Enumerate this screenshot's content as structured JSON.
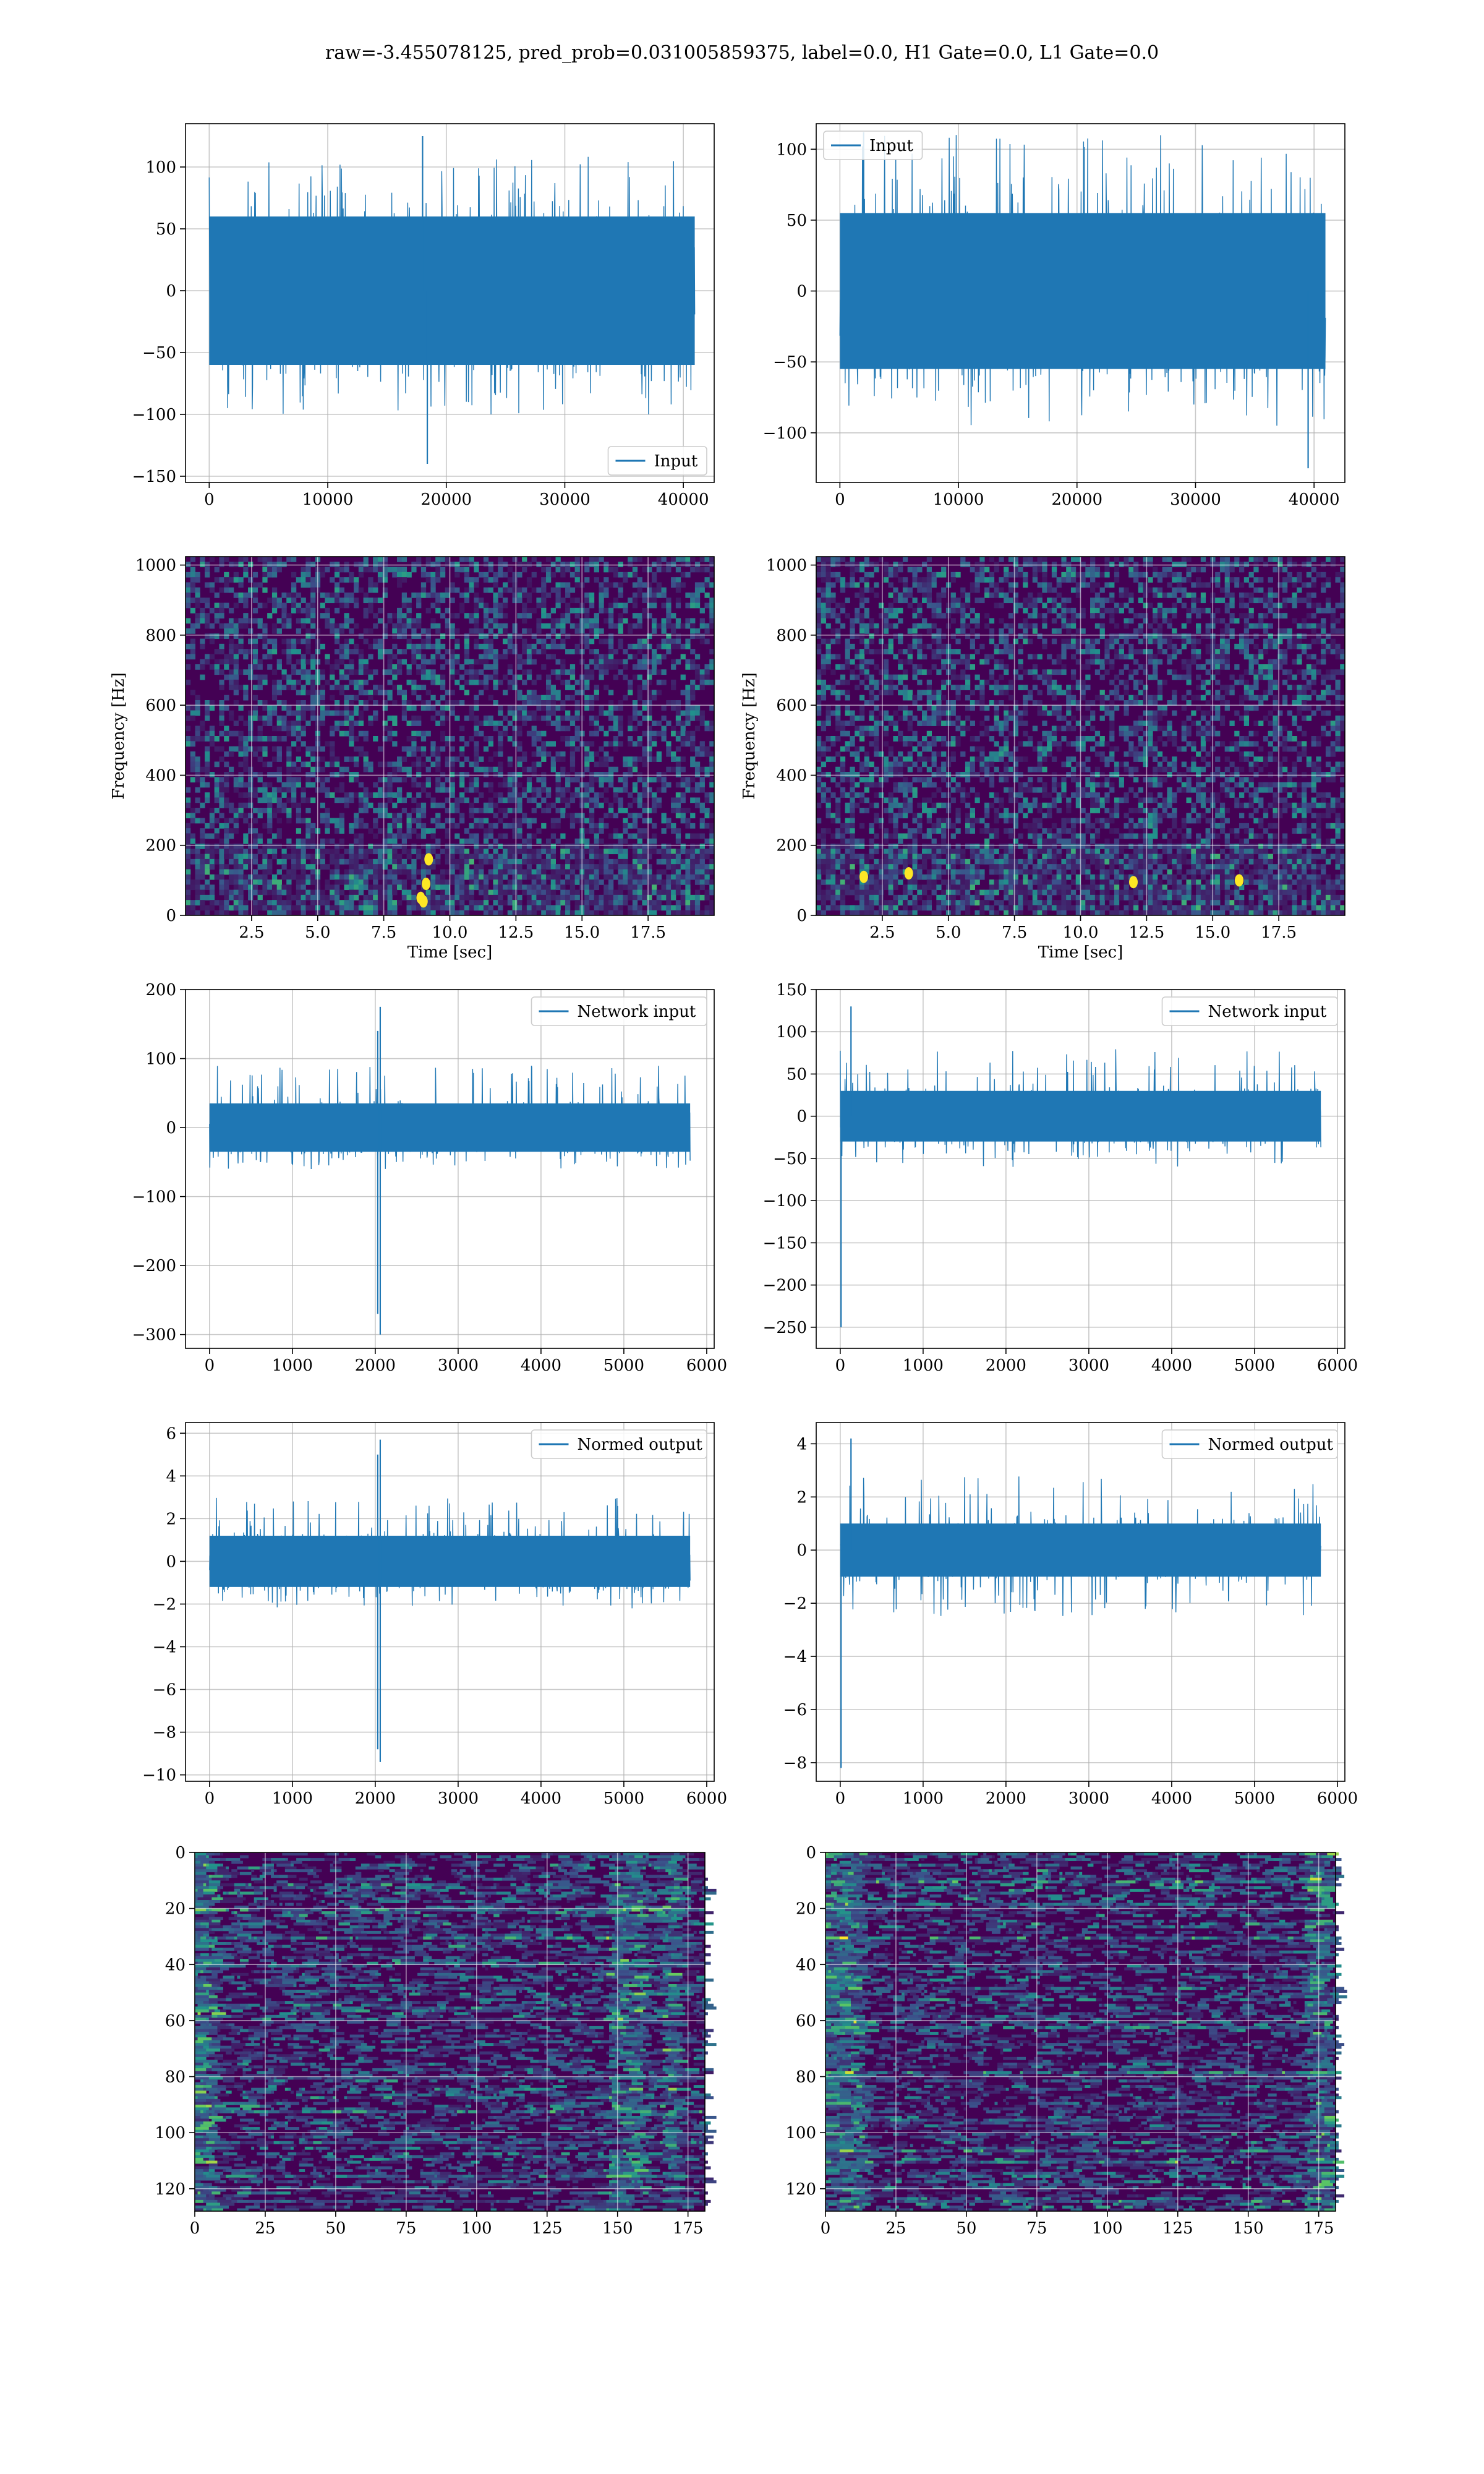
{
  "suptitle": "raw=-3.455078125, pred_prob=0.031005859375, label=0.0, H1 Gate=0.0, L1 Gate=0.0",
  "colors": {
    "line": "#1f77b4",
    "grid": "#b0b0b0",
    "viridis_low": "#440154",
    "viridis_mid": "#21918c",
    "viridis_high": "#fde725"
  },
  "chart_data": [
    {
      "id": "r1c1",
      "type": "line",
      "legend": "Input",
      "legend_loc": "lower-right",
      "xlim": [
        -2000,
        42600
      ],
      "ylim": [
        -155,
        135
      ],
      "xticks": [
        0,
        10000,
        20000,
        30000,
        40000
      ],
      "yticks": [
        -150,
        -100,
        -50,
        0,
        50,
        100
      ],
      "grid": true,
      "series": [
        {
          "x_range": [
            0,
            40960
          ],
          "envelope_typical": [
            -60,
            60
          ],
          "envelope_max": [
            -100,
            110
          ],
          "extremes": [
            [
              18400,
              -140
            ],
            [
              18000,
              125
            ]
          ]
        }
      ]
    },
    {
      "id": "r1c2",
      "type": "line",
      "legend": "Input",
      "legend_loc": "upper-left",
      "xlim": [
        -2000,
        42600
      ],
      "ylim": [
        -135,
        118
      ],
      "xticks": [
        0,
        10000,
        20000,
        30000,
        40000
      ],
      "yticks": [
        -100,
        -50,
        0,
        50,
        100
      ],
      "grid": true,
      "series": [
        {
          "x_range": [
            0,
            40960
          ],
          "envelope_typical": [
            -55,
            55
          ],
          "envelope_max": [
            -100,
            110
          ],
          "extremes": [
            [
              39500,
              -125
            ],
            [
              2000,
              112
            ]
          ]
        }
      ]
    },
    {
      "id": "r2c1",
      "type": "heatmap",
      "kind": "spectrogram",
      "xlabel": "Time [sec]",
      "ylabel": "Frequency [Hz]",
      "xlim": [
        0,
        20
      ],
      "ylim": [
        0,
        1024
      ],
      "xticks": [
        2.5,
        5.0,
        7.5,
        10.0,
        12.5,
        15.0,
        17.5
      ],
      "yticks": [
        0,
        200,
        400,
        600,
        800,
        1000
      ],
      "xtick_labels": [
        "2.5",
        "5.0",
        "7.5",
        "10.0",
        "12.5",
        "15.0",
        "17.5"
      ],
      "grid": true,
      "hotspots": [
        [
          9.0,
          40
        ],
        [
          9.1,
          90
        ],
        [
          9.2,
          160
        ],
        [
          8.9,
          50
        ]
      ]
    },
    {
      "id": "r2c2",
      "type": "heatmap",
      "kind": "spectrogram",
      "xlabel": "Time [sec]",
      "ylabel": "Frequency [Hz]",
      "xlim": [
        0,
        20
      ],
      "ylim": [
        0,
        1024
      ],
      "xticks": [
        2.5,
        5.0,
        7.5,
        10.0,
        12.5,
        15.0,
        17.5
      ],
      "yticks": [
        0,
        200,
        400,
        600,
        800,
        1000
      ],
      "xtick_labels": [
        "2.5",
        "5.0",
        "7.5",
        "10.0",
        "12.5",
        "15.0",
        "17.5"
      ],
      "grid": true,
      "hotspots": [
        [
          1.8,
          110
        ],
        [
          12.0,
          95
        ],
        [
          3.5,
          120
        ],
        [
          16.0,
          100
        ]
      ]
    },
    {
      "id": "r3c1",
      "type": "line",
      "legend": "Network input",
      "legend_loc": "upper-right",
      "xlim": [
        -290,
        6090
      ],
      "ylim": [
        -320,
        200
      ],
      "xticks": [
        0,
        1000,
        2000,
        3000,
        4000,
        5000,
        6000
      ],
      "yticks": [
        -300,
        -200,
        -100,
        0,
        100,
        200
      ],
      "grid": true,
      "series": [
        {
          "x_range": [
            0,
            5800
          ],
          "envelope_typical": [
            -35,
            35
          ],
          "envelope_max": [
            -60,
            90
          ],
          "extremes": [
            [
              2030,
              -270
            ],
            [
              2060,
              -300
            ],
            [
              2060,
              175
            ],
            [
              2030,
              140
            ]
          ]
        }
      ]
    },
    {
      "id": "r3c2",
      "type": "line",
      "legend": "Network input",
      "legend_loc": "upper-right",
      "xlim": [
        -290,
        6090
      ],
      "ylim": [
        -275,
        150
      ],
      "xticks": [
        0,
        1000,
        2000,
        3000,
        4000,
        5000,
        6000
      ],
      "yticks": [
        -250,
        -200,
        -150,
        -100,
        -50,
        0,
        50,
        100,
        150
      ],
      "grid": true,
      "series": [
        {
          "x_range": [
            0,
            5800
          ],
          "envelope_typical": [
            -30,
            30
          ],
          "envelope_max": [
            -60,
            80
          ],
          "extremes": [
            [
              10,
              -250
            ],
            [
              130,
              130
            ]
          ]
        }
      ]
    },
    {
      "id": "r4c1",
      "type": "line",
      "legend": "Normed output",
      "legend_loc": "upper-right",
      "xlim": [
        -290,
        6090
      ],
      "ylim": [
        -10.3,
        6.5
      ],
      "xticks": [
        0,
        1000,
        2000,
        3000,
        4000,
        5000,
        6000
      ],
      "yticks": [
        -10,
        -8,
        -6,
        -4,
        -2,
        0,
        2,
        4,
        6
      ],
      "grid": true,
      "series": [
        {
          "x_range": [
            0,
            5800
          ],
          "envelope_typical": [
            -1.2,
            1.2
          ],
          "envelope_max": [
            -2.2,
            3.0
          ],
          "extremes": [
            [
              2030,
              -8.8
            ],
            [
              2060,
              -9.4
            ],
            [
              2060,
              5.7
            ],
            [
              2030,
              5.0
            ]
          ]
        }
      ]
    },
    {
      "id": "r4c2",
      "type": "line",
      "legend": "Normed output",
      "legend_loc": "upper-right",
      "xlim": [
        -290,
        6090
      ],
      "ylim": [
        -8.7,
        4.8
      ],
      "xticks": [
        0,
        1000,
        2000,
        3000,
        4000,
        5000,
        6000
      ],
      "yticks": [
        -8,
        -6,
        -4,
        -2,
        0,
        2,
        4
      ],
      "grid": true,
      "series": [
        {
          "x_range": [
            0,
            5800
          ],
          "envelope_typical": [
            -1.0,
            1.0
          ],
          "envelope_max": [
            -2.5,
            2.8
          ],
          "extremes": [
            [
              10,
              -8.2
            ],
            [
              130,
              4.2
            ]
          ]
        }
      ]
    },
    {
      "id": "r5c1",
      "type": "heatmap",
      "kind": "feature-map",
      "xlim": [
        0,
        181
      ],
      "ylim": [
        0,
        128
      ],
      "y_inverted": true,
      "xticks": [
        0,
        25,
        50,
        75,
        100,
        125,
        150,
        175
      ],
      "yticks": [
        0,
        20,
        40,
        60,
        80,
        100,
        120
      ],
      "grid": true,
      "bright_columns": [
        2,
        3,
        4,
        148,
        150,
        152,
        156,
        168
      ],
      "bright_rows": [
        12,
        20,
        30,
        55,
        80,
        92,
        103,
        115,
        124
      ]
    },
    {
      "id": "r5c2",
      "type": "heatmap",
      "kind": "feature-map",
      "xlim": [
        0,
        181
      ],
      "ylim": [
        0,
        128
      ],
      "y_inverted": true,
      "xticks": [
        0,
        25,
        50,
        75,
        100,
        125,
        150,
        175
      ],
      "yticks": [
        0,
        20,
        40,
        60,
        80,
        100,
        120
      ],
      "grid": true,
      "bright_columns": [
        2,
        4,
        6,
        8,
        10,
        172,
        174,
        176
      ],
      "bright_rows": [
        10,
        18,
        30,
        48,
        62,
        78,
        95,
        106,
        110,
        124
      ]
    }
  ]
}
